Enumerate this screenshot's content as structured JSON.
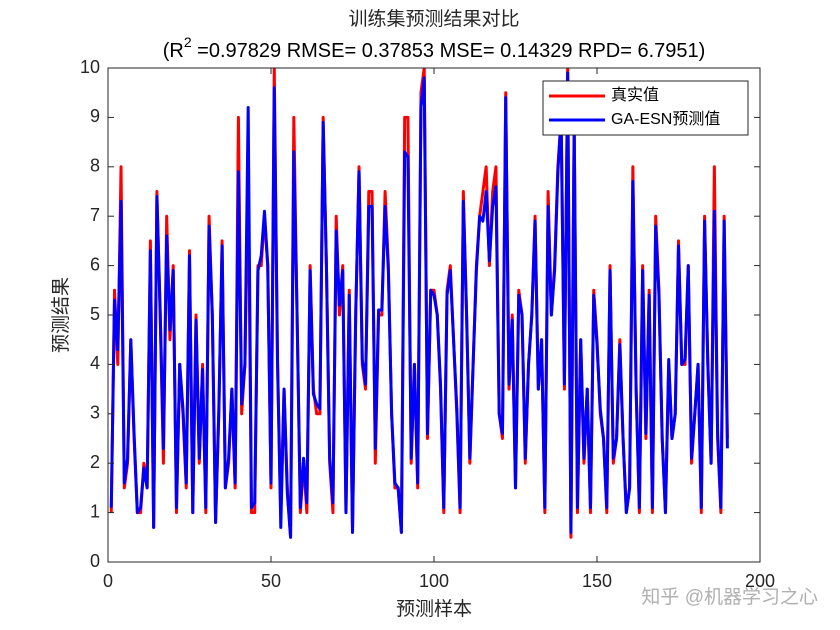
{
  "chart_data": {
    "type": "line",
    "title": "训练集预测结果对比",
    "subtitle": [
      "(R",
      "2",
      " =0.97829 RMSE= 0.37853 MSE= 0.14329 RPD= 6.7951)"
    ],
    "xlabel": "预测样本",
    "ylabel": "预测结果",
    "watermark": "知乎 @机器学习之心",
    "legend": "northeast",
    "xlim": [
      0,
      200
    ],
    "xticks": [
      0,
      50,
      100,
      150,
      200
    ],
    "ylim": [
      0,
      10
    ],
    "yticks": [
      0,
      1,
      2,
      3,
      4,
      5,
      6,
      7,
      8,
      9,
      10
    ],
    "x": [
      1,
      2,
      3,
      4,
      5,
      6,
      7,
      8,
      9,
      10,
      11,
      12,
      13,
      14,
      15,
      16,
      17,
      18,
      19,
      20,
      21,
      22,
      23,
      24,
      25,
      26,
      27,
      28,
      29,
      30,
      31,
      32,
      33,
      34,
      35,
      36,
      37,
      38,
      39,
      40,
      41,
      42,
      43,
      44,
      45,
      46,
      47,
      48,
      49,
      50,
      51,
      52,
      53,
      54,
      55,
      56,
      57,
      58,
      59,
      60,
      61,
      62,
      63,
      64,
      65,
      66,
      67,
      68,
      69,
      70,
      71,
      72,
      73,
      74,
      75,
      76,
      77,
      78,
      79,
      80,
      81,
      82,
      83,
      84,
      85,
      86,
      87,
      88,
      89,
      90,
      91,
      92,
      93,
      94,
      95,
      96,
      97,
      98,
      99,
      100,
      101,
      102,
      103,
      104,
      105,
      106,
      107,
      108,
      109,
      110,
      111,
      112,
      113,
      114,
      115,
      116,
      117,
      118,
      119,
      120,
      121,
      122,
      123,
      124,
      125,
      126,
      127,
      128,
      129,
      130,
      131,
      132,
      133,
      134,
      135,
      136,
      137,
      138,
      139,
      140,
      141,
      142,
      143,
      144,
      145,
      146,
      147,
      148,
      149,
      150,
      151,
      152,
      153,
      154,
      155,
      156,
      157,
      158,
      159,
      160,
      161,
      162,
      163,
      164,
      165,
      166,
      167,
      168,
      169,
      170,
      171,
      172,
      173,
      174,
      175,
      176,
      177,
      178,
      179,
      180,
      181,
      182,
      183,
      184,
      185,
      186,
      187,
      188,
      189,
      190
    ],
    "series": [
      {
        "name": "真实值",
        "color": "#ff0000",
        "values": [
          1,
          5.5,
          4,
          8,
          1.5,
          2,
          4.5,
          2.5,
          1,
          1,
          2,
          1.5,
          6.5,
          0.7,
          7.5,
          5,
          2,
          7,
          4.5,
          6,
          1,
          4,
          3,
          1.5,
          6.3,
          1,
          5,
          2,
          4,
          1,
          7,
          5,
          0.8,
          3,
          6.5,
          1.5,
          2,
          3.5,
          1.5,
          9,
          3,
          4,
          8,
          1,
          1,
          6,
          6,
          7,
          6,
          1.5,
          10,
          4,
          1,
          3.5,
          1.5,
          0.5,
          9,
          5,
          1,
          2,
          1,
          6,
          3.5,
          3,
          3,
          9,
          6,
          2,
          1,
          7,
          5,
          6,
          1,
          5.5,
          0.6,
          5,
          8,
          4,
          3.5,
          7.5,
          7.5,
          2,
          5,
          5,
          7.5,
          6,
          3,
          1.5,
          1.5,
          0.6,
          9,
          9,
          2,
          4,
          1.5,
          9.5,
          10,
          2.5,
          5.5,
          5.5,
          5,
          3.5,
          1,
          5.5,
          6,
          4.5,
          3,
          1,
          7.5,
          5,
          2,
          4,
          6,
          7,
          7.5,
          8,
          6,
          7.5,
          8,
          3,
          2.5,
          9.5,
          3.5,
          5,
          1.5,
          5.5,
          5,
          2,
          4,
          5,
          7,
          3.5,
          4.5,
          1,
          7.5,
          5,
          6,
          8,
          9,
          3.5,
          10,
          0.5,
          9,
          1,
          4.5,
          2,
          3.5,
          1,
          5.5,
          4.5,
          3,
          2.5,
          1,
          6,
          2,
          2.5,
          4.5,
          2.5,
          1,
          1.5,
          8,
          3.5,
          1,
          6,
          2.5,
          5.5,
          1,
          7,
          5.5,
          2.5,
          1,
          4,
          2.5,
          3,
          6.5,
          4,
          4,
          6,
          2,
          3,
          4,
          1,
          7,
          4,
          2,
          8,
          2.5,
          1,
          7,
          2.5
        ]
      },
      {
        "name": "GA-ESN预测值",
        "color": "#0000ff",
        "values": [
          1.1,
          5.3,
          4.3,
          7.3,
          1.6,
          2.1,
          4.5,
          2.6,
          1.0,
          1.1,
          1.9,
          1.5,
          6.3,
          0.7,
          7.4,
          5.1,
          2.3,
          6.6,
          4.7,
          5.9,
          1.1,
          4.0,
          3.1,
          1.6,
          6.2,
          1.0,
          4.9,
          2.1,
          3.9,
          1.1,
          6.8,
          5.0,
          0.8,
          3.1,
          6.4,
          1.5,
          2.1,
          3.5,
          1.6,
          7.9,
          3.2,
          4.0,
          9.2,
          1.1,
          1.2,
          5.9,
          6.2,
          7.1,
          6.0,
          1.6,
          9.6,
          4.1,
          0.7,
          3.5,
          1.4,
          0.5,
          8.3,
          5.0,
          1.1,
          2.1,
          1.2,
          5.9,
          3.4,
          3.2,
          3.1,
          8.9,
          6.0,
          2.1,
          1.2,
          6.7,
          5.2,
          5.9,
          1.0,
          5.4,
          0.6,
          5.1,
          7.9,
          4.1,
          3.6,
          7.2,
          7.2,
          2.3,
          5.1,
          5.1,
          7.2,
          5.9,
          3.0,
          1.6,
          1.5,
          0.6,
          8.3,
          8.2,
          2.1,
          4.0,
          1.6,
          9.2,
          9.8,
          2.6,
          5.5,
          5.4,
          5.0,
          3.6,
          1.1,
          5.4,
          5.9,
          4.5,
          3.1,
          1.1,
          7.3,
          5.0,
          2.1,
          4.0,
          5.9,
          7.0,
          6.9,
          7.5,
          6.1,
          7.2,
          7.6,
          3.0,
          2.6,
          9.4,
          3.6,
          4.9,
          1.5,
          5.4,
          5.0,
          2.1,
          4.0,
          5.0,
          6.9,
          3.5,
          4.5,
          1.1,
          7.2,
          5.0,
          5.9,
          7.9,
          9.0,
          3.6,
          9.9,
          0.6,
          8.8,
          1.1,
          4.5,
          2.1,
          3.5,
          1.1,
          5.4,
          4.4,
          3.1,
          2.5,
          1.1,
          5.9,
          2.1,
          2.5,
          4.4,
          2.5,
          1.0,
          1.5,
          7.7,
          3.5,
          1.1,
          5.9,
          2.6,
          5.4,
          1.1,
          6.8,
          5.4,
          2.5,
          1.0,
          4.1,
          2.5,
          3.0,
          6.4,
          4.0,
          4.1,
          6.0,
          2.1,
          3.0,
          4.0,
          1.1,
          6.9,
          4.0,
          2.0,
          7.1,
          2.6,
          1.1,
          6.9,
          2.3
        ]
      }
    ]
  }
}
